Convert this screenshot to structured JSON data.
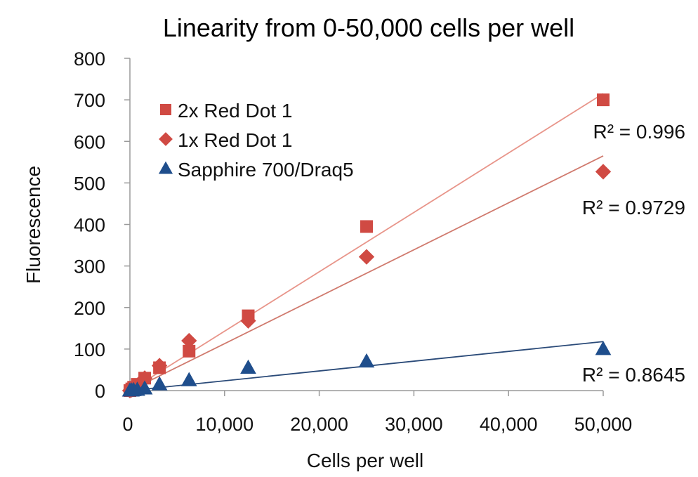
{
  "chart_data": {
    "type": "scatter",
    "title": "Linearity from 0-50,000 cells per well",
    "xlabel": "Cells per well",
    "ylabel": "Fluorescence",
    "xlim": [
      0,
      50000
    ],
    "ylim": [
      0,
      800
    ],
    "x_ticks": [
      0,
      10000,
      20000,
      30000,
      40000,
      50000
    ],
    "x_tick_labels": [
      "0",
      "10,000",
      "20,000",
      "30,000",
      "40,000",
      "50,000"
    ],
    "y_ticks": [
      0,
      100,
      200,
      300,
      400,
      500,
      600,
      700,
      800
    ],
    "y_tick_labels": [
      "0",
      "100",
      "200",
      "300",
      "400",
      "500",
      "600",
      "700",
      "800"
    ],
    "grid": false,
    "legend_position": "top-left",
    "series": [
      {
        "name": "2x Red Dot 1",
        "marker": "square",
        "color": "#d04a43",
        "trend_color": "#e8958a",
        "x": [
          0,
          195,
          391,
          781,
          1563,
          3125,
          6250,
          12500,
          25000,
          50000
        ],
        "y": [
          0,
          4,
          8,
          15,
          30,
          55,
          95,
          180,
          395,
          700
        ],
        "trendline": {
          "slope": 0.0143,
          "intercept": 0
        },
        "r_squared_label": "R² = 0.996"
      },
      {
        "name": "1x Red Dot 1",
        "marker": "diamond",
        "color": "#d04a43",
        "trend_color": "#d07a6e",
        "x": [
          0,
          195,
          391,
          781,
          1563,
          3125,
          6250,
          12500,
          25000,
          50000
        ],
        "y": [
          0,
          2,
          5,
          12,
          30,
          60,
          120,
          168,
          322,
          527
        ],
        "trendline": {
          "slope": 0.0113,
          "intercept": 0
        },
        "r_squared_label": "R² = 0.9729"
      },
      {
        "name": "Sapphire 700/Draq5",
        "marker": "triangle",
        "color": "#1f4e8c",
        "trend_color": "#2a4a78",
        "x": [
          0,
          195,
          391,
          781,
          1563,
          3125,
          6250,
          12500,
          25000,
          50000
        ],
        "y": [
          0,
          0,
          1,
          2,
          5,
          15,
          25,
          55,
          70,
          100
        ],
        "trendline": {
          "slope": 0.00236,
          "intercept": 0
        },
        "r_squared_label": "R² = 0.8645"
      }
    ]
  }
}
